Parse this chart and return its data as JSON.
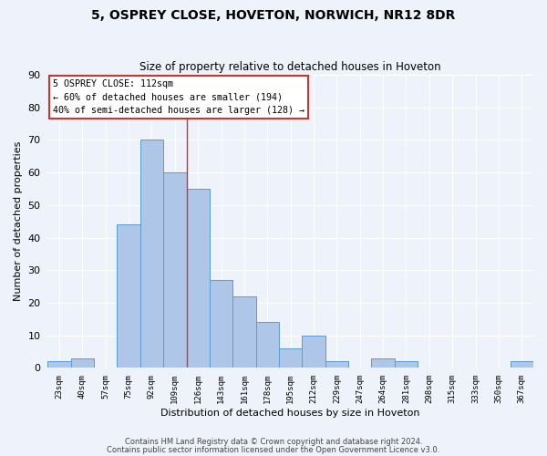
{
  "title1": "5, OSPREY CLOSE, HOVETON, NORWICH, NR12 8DR",
  "title2": "Size of property relative to detached houses in Hoveton",
  "xlabel": "Distribution of detached houses by size in Hoveton",
  "ylabel": "Number of detached properties",
  "categories": [
    "23sqm",
    "40sqm",
    "57sqm",
    "75sqm",
    "92sqm",
    "109sqm",
    "126sqm",
    "143sqm",
    "161sqm",
    "178sqm",
    "195sqm",
    "212sqm",
    "229sqm",
    "247sqm",
    "264sqm",
    "281sqm",
    "298sqm",
    "315sqm",
    "333sqm",
    "350sqm",
    "367sqm"
  ],
  "values": [
    2,
    3,
    0,
    44,
    70,
    60,
    55,
    27,
    22,
    14,
    6,
    10,
    2,
    0,
    3,
    2,
    0,
    0,
    0,
    0,
    2
  ],
  "bar_color": "#aec6e8",
  "bar_edge_color": "#5b9bd5",
  "bg_color": "#eef2fa",
  "grid_color": "#ffffff",
  "vline_x": 5.5,
  "vline_color": "#cc3333",
  "annotation_text": "5 OSPREY CLOSE: 112sqm\n← 60% of detached houses are smaller (194)\n40% of semi-detached houses are larger (128) →",
  "annotation_box_color": "#ffffff",
  "annotation_box_edge": "#cc3333",
  "ylim": [
    0,
    90
  ],
  "yticks": [
    0,
    10,
    20,
    30,
    40,
    50,
    60,
    70,
    80,
    90
  ],
  "footer1": "Contains HM Land Registry data © Crown copyright and database right 2024.",
  "footer2": "Contains public sector information licensed under the Open Government Licence v3.0."
}
